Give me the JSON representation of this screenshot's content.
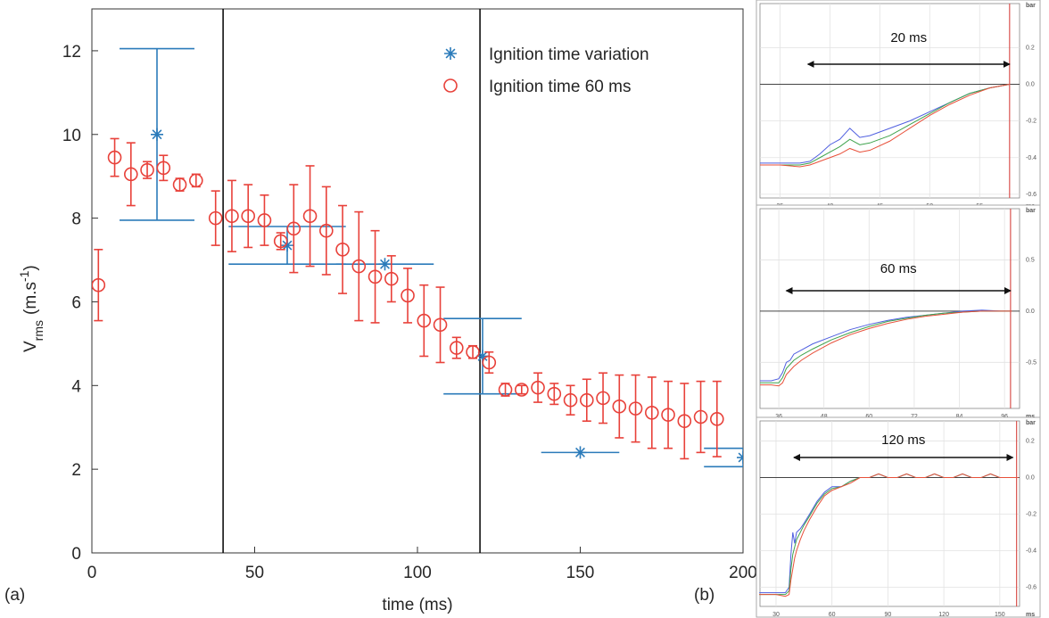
{
  "panel_labels": [
    "(a)",
    "(b)"
  ],
  "chart_data": [
    {
      "type": "errorbar",
      "xlabel": "time (ms)",
      "ylabel": [
        "V",
        "rms",
        "(m.s",
        "-1",
        ")"
      ],
      "xlim": [
        0,
        200
      ],
      "ylim": [
        0,
        13
      ],
      "xticks": [
        0,
        50,
        100,
        150,
        200
      ],
      "yticks": [
        0,
        2,
        4,
        6,
        8,
        10,
        12
      ],
      "legend": "upper right",
      "vlines": [
        40.3,
        119.2
      ],
      "vline_color": "#000000",
      "series": [
        {
          "name": "Ignition time variation",
          "color": "#2b7bba",
          "marker": "star",
          "x": [
            20,
            60,
            90,
            120,
            150,
            200
          ],
          "values": [
            10,
            7.35,
            6.9,
            4.7,
            2.4,
            2.28
          ],
          "yerr": [
            2.05,
            0.45,
            0,
            0.9,
            0,
            0.22
          ],
          "xerr": [
            11.5,
            18,
            15,
            12,
            12,
            12
          ]
        },
        {
          "name": "Ignition time 60 ms",
          "color": "#e8413a",
          "marker": "circle",
          "x": [
            2,
            7,
            12,
            17,
            22,
            27,
            32,
            38,
            43,
            48,
            53,
            58,
            62,
            67,
            72,
            77,
            82,
            87,
            92,
            97,
            102,
            107,
            112,
            117,
            122,
            127,
            132,
            137,
            142,
            147,
            152,
            157,
            162,
            167,
            172,
            177,
            182,
            187,
            192
          ],
          "values": [
            6.4,
            9.45,
            9.05,
            9.15,
            9.2,
            8.8,
            8.9,
            8.0,
            8.05,
            8.05,
            7.95,
            7.45,
            7.75,
            8.05,
            7.7,
            7.25,
            6.85,
            6.6,
            6.55,
            6.15,
            5.55,
            5.45,
            4.9,
            4.8,
            4.55,
            3.9,
            3.9,
            3.95,
            3.8,
            3.65,
            3.65,
            3.7,
            3.5,
            3.45,
            3.35,
            3.3,
            3.15,
            3.25,
            3.2
          ],
          "yerr": [
            0.85,
            0.45,
            0.75,
            0.2,
            0.3,
            0.15,
            0.15,
            0.65,
            0.85,
            0.75,
            0.6,
            0.2,
            1.05,
            1.2,
            1.05,
            1.05,
            1.3,
            1.1,
            0.55,
            0.65,
            0.85,
            0.9,
            0.25,
            0.15,
            0.25,
            0.15,
            0.1,
            0.35,
            0.25,
            0.35,
            0.5,
            0.6,
            0.75,
            0.8,
            0.85,
            0.8,
            0.9,
            0.85,
            0.9
          ]
        }
      ]
    },
    {
      "type": "line",
      "annotation": "20 ms",
      "span": [
        37.8,
        58
      ],
      "marker_x": 58,
      "marker_color": "#d9534f",
      "x_unit": "ms",
      "y_unit": "bar",
      "xlim": [
        33,
        59
      ],
      "ylim": [
        -0.62,
        0.44
      ],
      "grid": true,
      "xticks": [
        35,
        40,
        45,
        50,
        55
      ],
      "yticks": [
        0.2,
        {
          "value": 0,
          "label": "0.0"
        },
        -0.2,
        -0.4,
        -0.6
      ],
      "x": [
        33,
        35,
        37,
        38,
        39,
        40,
        41,
        42,
        43,
        44,
        46,
        48,
        50,
        52,
        54,
        56,
        58
      ],
      "series": [
        {
          "color": "#4f5fe0",
          "values": [
            -0.43,
            -0.43,
            -0.43,
            -0.42,
            -0.38,
            -0.33,
            -0.3,
            -0.24,
            -0.29,
            -0.28,
            -0.24,
            -0.2,
            -0.15,
            -0.1,
            -0.05,
            -0.02,
            0.0
          ]
        },
        {
          "color": "#3fa34d",
          "values": [
            -0.44,
            -0.44,
            -0.44,
            -0.43,
            -0.4,
            -0.37,
            -0.34,
            -0.3,
            -0.33,
            -0.32,
            -0.28,
            -0.22,
            -0.16,
            -0.1,
            -0.05,
            -0.02,
            0.0
          ]
        },
        {
          "color": "#e8503a",
          "values": [
            -0.44,
            -0.44,
            -0.45,
            -0.44,
            -0.42,
            -0.4,
            -0.38,
            -0.35,
            -0.37,
            -0.36,
            -0.31,
            -0.24,
            -0.17,
            -0.11,
            -0.06,
            -0.02,
            0.0
          ]
        }
      ]
    },
    {
      "type": "line",
      "annotation": "60 ms",
      "span": [
        38,
        97.6
      ],
      "marker_x": 97.6,
      "marker_color": "#d9534f",
      "x_unit": "ms",
      "y_unit": "bar",
      "xlim": [
        31,
        100
      ],
      "ylim": [
        -0.95,
        1.0
      ],
      "grid": true,
      "xticks": [
        36,
        48,
        60,
        72,
        84,
        96
      ],
      "yticks": [
        0.5,
        {
          "value": 0,
          "label": "0.0"
        },
        -0.5
      ],
      "x": [
        31,
        34,
        36,
        37,
        38,
        39,
        40,
        42,
        45,
        50,
        55,
        60,
        65,
        70,
        75,
        80,
        85,
        90,
        95,
        98
      ],
      "series": [
        {
          "color": "#4f5fe0",
          "values": [
            -0.68,
            -0.68,
            -0.66,
            -0.6,
            -0.5,
            -0.48,
            -0.42,
            -0.38,
            -0.32,
            -0.25,
            -0.18,
            -0.13,
            -0.09,
            -0.06,
            -0.04,
            -0.02,
            0.0,
            0.01,
            0.0,
            0.0
          ]
        },
        {
          "color": "#3fa34d",
          "values": [
            -0.7,
            -0.7,
            -0.7,
            -0.65,
            -0.56,
            -0.52,
            -0.48,
            -0.43,
            -0.37,
            -0.28,
            -0.21,
            -0.15,
            -0.1,
            -0.07,
            -0.04,
            -0.02,
            -0.01,
            0.0,
            0.0,
            0.0
          ]
        },
        {
          "color": "#e8503a",
          "values": [
            -0.72,
            -0.72,
            -0.73,
            -0.7,
            -0.62,
            -0.58,
            -0.54,
            -0.48,
            -0.41,
            -0.31,
            -0.23,
            -0.17,
            -0.12,
            -0.08,
            -0.05,
            -0.03,
            -0.01,
            0.0,
            0.0,
            0.0
          ]
        }
      ]
    },
    {
      "type": "line",
      "annotation": "120 ms",
      "span": [
        39.6,
        157
      ],
      "marker_x": 159,
      "marker_color": "#d9534f",
      "x_unit": "ms",
      "y_unit": "bar",
      "xlim": [
        21.4,
        160.6
      ],
      "ylim": [
        -0.705,
        0.31
      ],
      "grid": true,
      "xticks": [
        30,
        60,
        90,
        120,
        150
      ],
      "yticks": [
        0.2,
        {
          "value": 0,
          "label": "0.0"
        },
        -0.2,
        -0.4,
        -0.6
      ],
      "x": [
        21,
        30,
        35,
        37,
        38,
        39,
        40,
        41,
        43,
        45,
        48,
        52,
        56,
        60,
        65,
        70,
        75,
        80,
        85,
        90,
        95,
        100,
        105,
        110,
        115,
        120,
        125,
        130,
        135,
        140,
        145,
        150,
        155,
        160
      ],
      "series": [
        {
          "color": "#4f5fe0",
          "values": [
            -0.63,
            -0.63,
            -0.63,
            -0.6,
            -0.42,
            -0.3,
            -0.36,
            -0.3,
            -0.28,
            -0.25,
            -0.2,
            -0.13,
            -0.08,
            -0.05,
            -0.05,
            -0.02,
            0.0,
            0.0,
            0.02,
            0.0,
            0.0,
            0.02,
            0.0,
            0.0,
            0.02,
            0.0,
            0.0,
            0.02,
            0.0,
            0.0,
            0.02,
            0.0,
            0.0,
            0.0
          ]
        },
        {
          "color": "#3fa34d",
          "values": [
            -0.64,
            -0.64,
            -0.64,
            -0.62,
            -0.5,
            -0.42,
            -0.38,
            -0.34,
            -0.3,
            -0.26,
            -0.21,
            -0.14,
            -0.09,
            -0.06,
            -0.05,
            -0.02,
            0.0,
            0.0,
            0.02,
            0.0,
            0.0,
            0.02,
            0.0,
            0.0,
            0.02,
            0.0,
            0.0,
            0.02,
            0.0,
            0.0,
            0.02,
            0.0,
            0.0,
            0.0
          ]
        },
        {
          "color": "#e8503a",
          "values": [
            -0.64,
            -0.64,
            -0.65,
            -0.64,
            -0.56,
            -0.5,
            -0.44,
            -0.4,
            -0.34,
            -0.29,
            -0.23,
            -0.16,
            -0.1,
            -0.07,
            -0.05,
            -0.03,
            0.0,
            0.0,
            0.02,
            0.0,
            0.0,
            0.02,
            0.0,
            0.0,
            0.02,
            0.0,
            0.0,
            0.02,
            0.0,
            0.0,
            0.02,
            0.0,
            0.0,
            0.0
          ]
        }
      ]
    }
  ]
}
